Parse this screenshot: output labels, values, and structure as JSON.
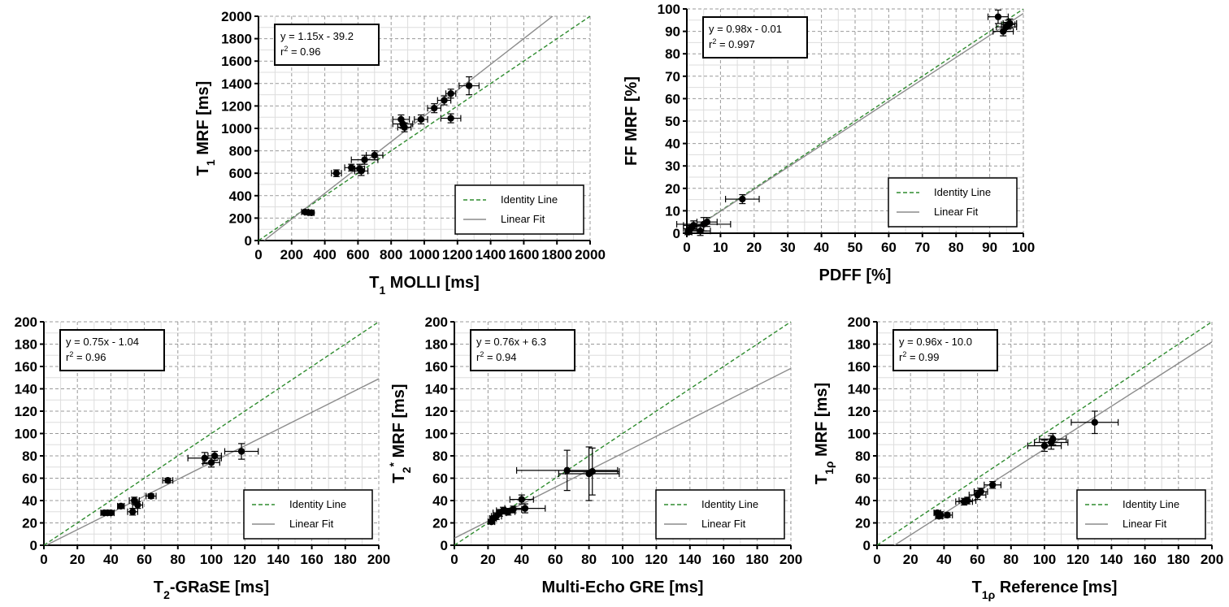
{
  "colors": {
    "identity": "#2e8b2e",
    "fit": "#8c8c8c",
    "points": "#000000",
    "grid": "#999999"
  },
  "chart_data": [
    {
      "type": "scatter",
      "xlabel": {
        "main": "T",
        "sub": "1",
        "rest": " MOLLI [ms]"
      },
      "ylabel": {
        "main": "T",
        "sub": "1",
        "rest": " MRF [ms]"
      },
      "xlim": [
        0,
        2000
      ],
      "ylim": [
        0,
        2000
      ],
      "xticks": [
        0,
        200,
        400,
        600,
        800,
        1000,
        1200,
        1400,
        1600,
        1800,
        2000
      ],
      "yticks": [
        0,
        200,
        400,
        600,
        800,
        1000,
        1200,
        1400,
        1600,
        1800,
        2000
      ],
      "equation": "y = 1.15x - 39.2",
      "r2_value": " = 0.96",
      "fit": {
        "slope": 1.15,
        "intercept": -39.2
      },
      "legend": [
        "Identity Line",
        "Linear Fit"
      ],
      "points": [
        {
          "x": 280,
          "y": 255,
          "xe": 20,
          "ye": 15
        },
        {
          "x": 300,
          "y": 250,
          "xe": 20,
          "ye": 15
        },
        {
          "x": 320,
          "y": 248,
          "xe": 15,
          "ye": 12
        },
        {
          "x": 470,
          "y": 600,
          "xe": 30,
          "ye": 30
        },
        {
          "x": 560,
          "y": 650,
          "xe": 40,
          "ye": 30
        },
        {
          "x": 610,
          "y": 640,
          "xe": 30,
          "ye": 40
        },
        {
          "x": 620,
          "y": 620,
          "xe": 40,
          "ye": 40
        },
        {
          "x": 640,
          "y": 720,
          "xe": 80,
          "ye": 40
        },
        {
          "x": 700,
          "y": 760,
          "xe": 50,
          "ye": 40
        },
        {
          "x": 860,
          "y": 1080,
          "xe": 50,
          "ye": 40
        },
        {
          "x": 870,
          "y": 1040,
          "xe": 60,
          "ye": 40
        },
        {
          "x": 880,
          "y": 1010,
          "xe": 40,
          "ye": 40
        },
        {
          "x": 980,
          "y": 1080,
          "xe": 40,
          "ye": 40
        },
        {
          "x": 1060,
          "y": 1180,
          "xe": 40,
          "ye": 40
        },
        {
          "x": 1120,
          "y": 1250,
          "xe": 40,
          "ye": 40
        },
        {
          "x": 1160,
          "y": 1310,
          "xe": 30,
          "ye": 40
        },
        {
          "x": 1160,
          "y": 1090,
          "xe": 60,
          "ye": 40
        },
        {
          "x": 1270,
          "y": 1380,
          "xe": 60,
          "ye": 80
        }
      ]
    },
    {
      "type": "scatter",
      "xlabel": {
        "main": "PDFF [%]",
        "sub": "",
        "rest": ""
      },
      "ylabel": {
        "main": "FF MRF [%]",
        "sub": "",
        "rest": ""
      },
      "xlim": [
        0,
        100
      ],
      "ylim": [
        0,
        100
      ],
      "xticks": [
        0,
        10,
        20,
        30,
        40,
        50,
        60,
        70,
        80,
        90,
        100
      ],
      "yticks": [
        0,
        10,
        20,
        30,
        40,
        50,
        60,
        70,
        80,
        90,
        100
      ],
      "equation": "y = 0.98x - 0.01",
      "r2_value": " = 0.997",
      "fit": {
        "slope": 0.98,
        "intercept": -0.01
      },
      "legend": [
        "Identity Line",
        "Linear Fit"
      ],
      "points": [
        {
          "x": 0.5,
          "y": 0.5,
          "xe": 1,
          "ye": 1
        },
        {
          "x": 1,
          "y": 2,
          "xe": 2,
          "ye": 2
        },
        {
          "x": 2,
          "y": 3.5,
          "xe": 3,
          "ye": 2
        },
        {
          "x": 4,
          "y": 1,
          "xe": 3,
          "ye": 2
        },
        {
          "x": 5,
          "y": 4,
          "xe": 8,
          "ye": 3
        },
        {
          "x": 6,
          "y": 5,
          "xe": 3,
          "ye": 2
        },
        {
          "x": 16.5,
          "y": 15.2,
          "xe": 5,
          "ye": 2
        },
        {
          "x": 92.5,
          "y": 96.5,
          "xe": 3,
          "ye": 3
        },
        {
          "x": 94,
          "y": 90,
          "xe": 3,
          "ye": 2
        },
        {
          "x": 95,
          "y": 92,
          "xe": 3,
          "ye": 2
        },
        {
          "x": 95.5,
          "y": 93,
          "xe": 2,
          "ye": 2
        },
        {
          "x": 96,
          "y": 93.5,
          "xe": 2,
          "ye": 2
        }
      ]
    },
    {
      "type": "scatter",
      "xlabel": {
        "main": "T",
        "sub": "2",
        "rest": "-GRaSE [ms]"
      },
      "ylabel": {
        "main": "",
        "sub": "",
        "rest": ""
      },
      "xlim": [
        0,
        200
      ],
      "ylim": [
        0,
        200
      ],
      "xticks": [
        0,
        20,
        40,
        60,
        80,
        100,
        120,
        140,
        160,
        180,
        200
      ],
      "yticks": [
        0,
        20,
        40,
        60,
        80,
        100,
        120,
        140,
        160,
        180,
        200
      ],
      "equation": "y = 0.75x - 1.04",
      "r2_value": " = 0.96",
      "fit": {
        "slope": 0.75,
        "intercept": -1.04
      },
      "legend": [
        "Identity Line",
        "Linear Fit"
      ],
      "points": [
        {
          "x": 36,
          "y": 29,
          "xe": 2,
          "ye": 2
        },
        {
          "x": 38,
          "y": 29,
          "xe": 2,
          "ye": 2
        },
        {
          "x": 40,
          "y": 29,
          "xe": 2,
          "ye": 2
        },
        {
          "x": 46,
          "y": 35,
          "xe": 2,
          "ye": 2
        },
        {
          "x": 53,
          "y": 30,
          "xe": 3,
          "ye": 3
        },
        {
          "x": 54,
          "y": 40,
          "xe": 3,
          "ye": 3
        },
        {
          "x": 56,
          "y": 36,
          "xe": 3,
          "ye": 3
        },
        {
          "x": 64,
          "y": 44,
          "xe": 3,
          "ye": 2
        },
        {
          "x": 74,
          "y": 58,
          "xe": 3,
          "ye": 2
        },
        {
          "x": 96,
          "y": 78,
          "xe": 10,
          "ye": 5
        },
        {
          "x": 100,
          "y": 74,
          "xe": 5,
          "ye": 4
        },
        {
          "x": 102,
          "y": 80,
          "xe": 4,
          "ye": 4
        },
        {
          "x": 118,
          "y": 84,
          "xe": 10,
          "ye": 7
        }
      ]
    },
    {
      "type": "scatter",
      "xlabel": {
        "main": "Multi-Echo GRE [ms]",
        "sub": "",
        "rest": ""
      },
      "ylabel": {
        "main": "T",
        "sub": "2",
        "sup": "*",
        "rest": " MRF [ms]"
      },
      "xlim": [
        0,
        200
      ],
      "ylim": [
        0,
        200
      ],
      "xticks": [
        0,
        20,
        40,
        60,
        80,
        100,
        120,
        140,
        160,
        180,
        200
      ],
      "yticks": [
        0,
        20,
        40,
        60,
        80,
        100,
        120,
        140,
        160,
        180,
        200
      ],
      "equation": "y = 0.76x + 6.3",
      "r2_value": " = 0.94",
      "fit": {
        "slope": 0.76,
        "intercept": 6.3
      },
      "legend": [
        "Identity Line",
        "Linear Fit"
      ],
      "points": [
        {
          "x": 22,
          "y": 21,
          "xe": 2,
          "ye": 2
        },
        {
          "x": 23,
          "y": 24,
          "xe": 2,
          "ye": 2
        },
        {
          "x": 25,
          "y": 26,
          "xe": 3,
          "ye": 3
        },
        {
          "x": 27,
          "y": 29,
          "xe": 4,
          "ye": 3
        },
        {
          "x": 29,
          "y": 31,
          "xe": 4,
          "ye": 3
        },
        {
          "x": 32,
          "y": 30,
          "xe": 4,
          "ye": 3
        },
        {
          "x": 35,
          "y": 32,
          "xe": 5,
          "ye": 3
        },
        {
          "x": 40,
          "y": 41,
          "xe": 7,
          "ye": 4
        },
        {
          "x": 42,
          "y": 33,
          "xe": 12,
          "ye": 4
        },
        {
          "x": 67,
          "y": 67,
          "xe": 30,
          "ye": 18
        },
        {
          "x": 80,
          "y": 64,
          "xe": 18,
          "ye": 24
        },
        {
          "x": 82,
          "y": 66,
          "xe": 16,
          "ye": 21
        }
      ]
    },
    {
      "type": "scatter",
      "xlabel": {
        "main": "T",
        "sub": "1ρ",
        "rest": " Reference [ms]"
      },
      "ylabel": {
        "main": "T",
        "sub": "1ρ",
        "rest": " MRF [ms]"
      },
      "xlim": [
        0,
        200
      ],
      "ylim": [
        0,
        200
      ],
      "xticks": [
        0,
        20,
        40,
        60,
        80,
        100,
        120,
        140,
        160,
        180,
        200
      ],
      "yticks": [
        0,
        20,
        40,
        60,
        80,
        100,
        120,
        140,
        160,
        180,
        200
      ],
      "equation": "y = 0.96x - 10.0",
      "r2_value": " = 0.99",
      "fit": {
        "slope": 0.96,
        "intercept": -10.0
      },
      "legend": [
        "Identity Line",
        "Linear Fit"
      ],
      "points": [
        {
          "x": 36,
          "y": 29,
          "xe": 2,
          "ye": 2
        },
        {
          "x": 37,
          "y": 26,
          "xe": 2,
          "ye": 2
        },
        {
          "x": 38,
          "y": 27,
          "xe": 3,
          "ye": 3
        },
        {
          "x": 42,
          "y": 27,
          "xe": 3,
          "ye": 2
        },
        {
          "x": 52,
          "y": 39,
          "xe": 5,
          "ye": 3
        },
        {
          "x": 54,
          "y": 40,
          "xe": 5,
          "ye": 3
        },
        {
          "x": 60,
          "y": 45,
          "xe": 5,
          "ye": 4
        },
        {
          "x": 62,
          "y": 48,
          "xe": 4,
          "ye": 3
        },
        {
          "x": 69,
          "y": 54,
          "xe": 5,
          "ye": 3
        },
        {
          "x": 100,
          "y": 89,
          "xe": 10,
          "ye": 5
        },
        {
          "x": 104,
          "y": 92,
          "xe": 10,
          "ye": 6
        },
        {
          "x": 105,
          "y": 95,
          "xe": 8,
          "ye": 5
        },
        {
          "x": 130,
          "y": 110,
          "xe": 14,
          "ye": 10
        }
      ]
    }
  ]
}
